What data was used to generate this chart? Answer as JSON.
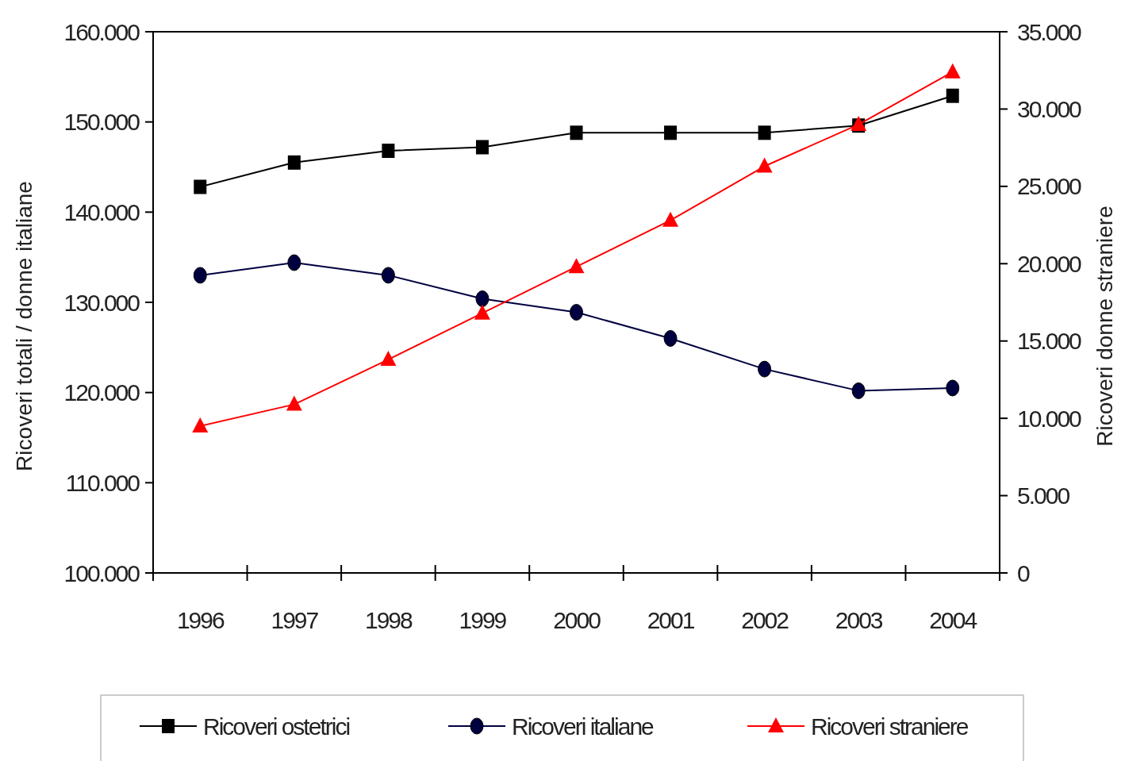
{
  "chart_data": {
    "type": "line",
    "categories": [
      "1996",
      "1997",
      "1998",
      "1999",
      "2000",
      "2001",
      "2002",
      "2003",
      "2004"
    ],
    "series": [
      {
        "name": "Ricoveri ostetrici",
        "color": "#000000",
        "marker": "square",
        "values": [
          142800,
          145500,
          146800,
          147200,
          148800,
          148800,
          148800,
          149600,
          152900
        ]
      },
      {
        "name": "Ricoveri italiane",
        "color": "#000040",
        "marker": "circle",
        "values": [
          133000,
          134400,
          133000,
          130400,
          128900,
          126000,
          122600,
          120200,
          120500
        ]
      },
      {
        "name": "Ricoveri straniere",
        "color": "#ff0000",
        "marker": "triangle",
        "axis": "y2",
        "values": [
          9500,
          10900,
          13800,
          16800,
          19800,
          22800,
          26300,
          29000,
          32400
        ]
      }
    ],
    "ylabel": "Ricoveri totali / donne italiane",
    "y2label": "Ricoveri donne straniere",
    "ylim": [
      100000,
      160000
    ],
    "yticks": [
      {
        "value": 100000,
        "label": "100.000"
      },
      {
        "value": 110000,
        "label": "110.000"
      },
      {
        "value": 120000,
        "label": "120.000"
      },
      {
        "value": 130000,
        "label": "130.000"
      },
      {
        "value": 140000,
        "label": "140.000"
      },
      {
        "value": 150000,
        "label": "150.000"
      },
      {
        "value": 160000,
        "label": "160.000"
      }
    ],
    "y2lim": [
      0,
      35000
    ],
    "y2ticks": [
      0,
      {
        "value": 5000,
        "label": "5.000"
      },
      {
        "value": 10000,
        "label": "10.000"
      },
      {
        "value": 15000,
        "label": "15.000"
      },
      {
        "value": 20000,
        "label": "20.000"
      },
      {
        "value": 25000,
        "label": "25.000"
      },
      {
        "value": 30000,
        "label": "30.000"
      },
      {
        "value": 35000,
        "label": "35.000"
      }
    ],
    "grid": false,
    "legend": "bottom",
    "line_style": "solid"
  }
}
